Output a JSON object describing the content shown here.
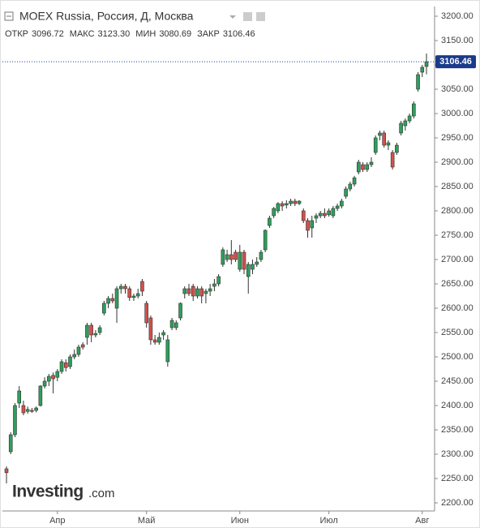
{
  "chart_data": {
    "type": "candlestick",
    "title": "MOEX Russia, Россия, Д, Москва",
    "stats": [
      {
        "label": "ОТКР",
        "value": "3096.72"
      },
      {
        "label": "МАКС",
        "value": "3123.30"
      },
      {
        "label": "МИН",
        "value": "3080.69"
      },
      {
        "label": "ЗАКР",
        "value": "3106.46"
      }
    ],
    "watermark": [
      "Investing",
      ".com"
    ],
    "colors": {
      "up": "#2e9e5b",
      "down": "#d2504c"
    },
    "open": [
      2270,
      2305,
      2340,
      2405,
      2400,
      2388,
      2390,
      2390,
      2400,
      2440,
      2450,
      2462,
      2458,
      2470,
      2488,
      2480,
      2500,
      2505,
      2525,
      2540,
      2565,
      2545,
      2550,
      2590,
      2610,
      2620,
      2600,
      2640,
      2645,
      2640,
      2622,
      2625,
      2655,
      2610,
      2580,
      2535,
      2530,
      2545,
      2490,
      2560,
      2560,
      2580,
      2630,
      2640,
      2645,
      2625,
      2640,
      2630,
      2635,
      2645,
      2650,
      2690,
      2700,
      2710,
      2715,
      2680,
      2715,
      2665,
      2680,
      2690,
      2700,
      2720,
      2770,
      2790,
      2800,
      2815,
      2812,
      2815,
      2820,
      2815,
      2800,
      2780,
      2765,
      2785,
      2790,
      2795,
      2792,
      2790,
      2805,
      2810,
      2830,
      2845,
      2855,
      2880,
      2895,
      2885,
      2895,
      2920,
      2955,
      2960,
      2935,
      2920,
      2920,
      2960,
      2975,
      2985,
      2995,
      3050,
      3085,
      3096.72
    ],
    "high": [
      2275,
      2345,
      2405,
      2440,
      2410,
      2398,
      2395,
      2398,
      2442,
      2458,
      2465,
      2468,
      2475,
      2495,
      2495,
      2505,
      2515,
      2525,
      2530,
      2570,
      2570,
      2555,
      2565,
      2615,
      2625,
      2630,
      2645,
      2650,
      2650,
      2645,
      2630,
      2640,
      2660,
      2615,
      2585,
      2545,
      2550,
      2555,
      2545,
      2580,
      2575,
      2612,
      2645,
      2650,
      2650,
      2645,
      2645,
      2640,
      2650,
      2660,
      2670,
      2725,
      2720,
      2740,
      2720,
      2730,
      2720,
      2695,
      2700,
      2705,
      2720,
      2762,
      2790,
      2808,
      2818,
      2820,
      2822,
      2825,
      2825,
      2822,
      2805,
      2785,
      2790,
      2795,
      2800,
      2805,
      2805,
      2810,
      2815,
      2825,
      2850,
      2860,
      2872,
      2905,
      2900,
      2900,
      2910,
      2955,
      2965,
      2965,
      2945,
      2925,
      2940,
      2985,
      2990,
      3000,
      3025,
      3085,
      3100,
      3123.3
    ],
    "low": [
      2240,
      2300,
      2335,
      2395,
      2380,
      2383,
      2385,
      2386,
      2398,
      2435,
      2440,
      2425,
      2450,
      2465,
      2470,
      2475,
      2495,
      2500,
      2515,
      2525,
      2530,
      2540,
      2545,
      2585,
      2600,
      2610,
      2570,
      2630,
      2630,
      2615,
      2615,
      2620,
      2625,
      2560,
      2525,
      2525,
      2525,
      2535,
      2480,
      2555,
      2555,
      2575,
      2620,
      2625,
      2615,
      2620,
      2610,
      2610,
      2625,
      2635,
      2645,
      2685,
      2695,
      2690,
      2695,
      2675,
      2670,
      2630,
      2670,
      2685,
      2695,
      2715,
      2765,
      2785,
      2795,
      2800,
      2805,
      2810,
      2810,
      2812,
      2775,
      2745,
      2745,
      2775,
      2785,
      2785,
      2788,
      2785,
      2800,
      2805,
      2825,
      2840,
      2850,
      2875,
      2880,
      2880,
      2890,
      2915,
      2945,
      2930,
      2925,
      2885,
      2915,
      2955,
      2965,
      2980,
      2990,
      3045,
      3075,
      3080.69
    ],
    "close": [
      2262,
      2340,
      2400,
      2430,
      2385,
      2392,
      2388,
      2395,
      2440,
      2450,
      2460,
      2455,
      2470,
      2490,
      2478,
      2500,
      2505,
      2520,
      2520,
      2565,
      2545,
      2548,
      2560,
      2610,
      2620,
      2615,
      2640,
      2645,
      2640,
      2622,
      2625,
      2630,
      2635,
      2570,
      2535,
      2530,
      2540,
      2550,
      2535,
      2575,
      2570,
      2610,
      2640,
      2630,
      2625,
      2640,
      2625,
      2635,
      2640,
      2650,
      2665,
      2720,
      2710,
      2700,
      2700,
      2715,
      2680,
      2690,
      2690,
      2695,
      2715,
      2760,
      2785,
      2805,
      2815,
      2810,
      2815,
      2820,
      2815,
      2820,
      2780,
      2760,
      2780,
      2790,
      2795,
      2790,
      2800,
      2805,
      2810,
      2820,
      2845,
      2855,
      2868,
      2900,
      2885,
      2895,
      2900,
      2950,
      2960,
      2935,
      2940,
      2890,
      2935,
      2980,
      2985,
      2995,
      3020,
      3080,
      3095,
      3106.46
    ],
    "last_price": {
      "value": 3106.46,
      "label": "3106.46"
    },
    "xticks": [
      {
        "value": 12,
        "label": "Апр"
      },
      {
        "value": 33,
        "label": "Май"
      },
      {
        "value": 55,
        "label": "Июн"
      },
      {
        "value": 76,
        "label": "Июл"
      },
      {
        "value": 98,
        "label": "Авг"
      }
    ],
    "ylim": [
      2200,
      3200
    ],
    "yticks": [
      {
        "value": 2200,
        "label": "2200.00"
      },
      {
        "value": 2250,
        "label": "2250.00"
      },
      {
        "value": 2300,
        "label": "2300.00"
      },
      {
        "value": 2350,
        "label": "2350.00"
      },
      {
        "value": 2400,
        "label": "2400.00"
      },
      {
        "value": 2450,
        "label": "2450.00"
      },
      {
        "value": 2500,
        "label": "2500.00"
      },
      {
        "value": 2550,
        "label": "2550.00"
      },
      {
        "value": 2600,
        "label": "2600.00"
      },
      {
        "value": 2650,
        "label": "2650.00"
      },
      {
        "value": 2700,
        "label": "2700.00"
      },
      {
        "value": 2750,
        "label": "2750.00"
      },
      {
        "value": 2800,
        "label": "2800.00"
      },
      {
        "value": 2850,
        "label": "2850.00"
      },
      {
        "value": 2900,
        "label": "2900.00"
      },
      {
        "value": 2950,
        "label": "2950.00"
      },
      {
        "value": 3000,
        "label": "3000.00"
      },
      {
        "value": 3050,
        "label": "3050.00"
      },
      {
        "value": 3100,
        "label": "3100.00"
      },
      {
        "value": 3150,
        "label": "3150.00"
      },
      {
        "value": 3200,
        "label": "3200.00"
      }
    ],
    "grid": false
  }
}
